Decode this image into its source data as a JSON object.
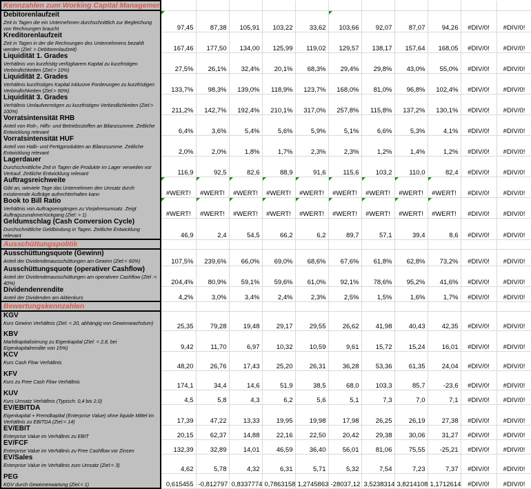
{
  "sections": [
    {
      "title": "Kennzahlen zum Working Capital Management",
      "rows": [
        {
          "title": "Debitorenlaufzeit",
          "desc": "Zeit in Tagen die ein Unternehmen durchschnittlich zur Begleichung von Rechnungen braucht",
          "values": [
            "97,45",
            "87,38",
            "105,91",
            "103,22",
            "33,62",
            "103,66",
            "92,07",
            "87,07",
            "94,26",
            "#DIV/0!",
            "#DIV/0!"
          ]
        },
        {
          "title": "Kreditorenlaufzeit",
          "desc": "Zeit in Tagen in der die Rechnungen des Unternehmens bezahlt werden (Ziel: > Debitorenlaufzeit)",
          "values": [
            "167,46",
            "177,50",
            "134,00",
            "125,99",
            "119,02",
            "129,57",
            "138,17",
            "157,64",
            "168,05",
            "#DIV/0!",
            "#DIV/0!"
          ]
        },
        {
          "title": "Liquidität 1. Grades",
          "desc": "Verhältnis von kurzfristig verfügbarem Kapital zu kurzfristigen Verbindlichkeiten (Ziel:> 10%)",
          "values": [
            "27,5%",
            "26,1%",
            "32,4%",
            "20,1%",
            "68,3%",
            "29,4%",
            "29,8%",
            "43,0%",
            "55,0%",
            "#DIV/0!",
            "#DIV/0!"
          ]
        },
        {
          "title": "Liquidität 2. Grades",
          "desc": "Verhältnis kurzfristiges Kapital inklusive Forderungen zu kurzfristigen Verbindlichkeiten (Ziel:> 90%)",
          "values": [
            "133,7%",
            "98,3%",
            "139,0%",
            "118,9%",
            "123,7%",
            "168,0%",
            "81,0%",
            "96,8%",
            "102,4%",
            "#DIV/0!",
            "#DIV/0!"
          ]
        },
        {
          "title": "Liquidität 3. Grades",
          "desc": "Verhältnis Umlaufvermögen zu kurzfristigen Verbindlichkeiten (Ziel:> 100%)",
          "values": [
            "211,2%",
            "142,7%",
            "192,4%",
            "210,1%",
            "317,0%",
            "257,8%",
            "115,8%",
            "137,2%",
            "130,1%",
            "#DIV/0!",
            "#DIV/0!"
          ]
        },
        {
          "title": "Vorratsintensität RHB",
          "desc": "Anteil von Roh-, Hilfs- und Betriebsstoffen an Bilanzsumme. Zeitliche Entwicklung relevant",
          "values": [
            "6,4%",
            "3,6%",
            "5,4%",
            "5,6%",
            "5,9%",
            "5,1%",
            "6,6%",
            "5,3%",
            "4,1%",
            "#DIV/0!",
            "#DIV/0!"
          ]
        },
        {
          "title": "Vorratsintensität HUF",
          "desc": "Anteil von Halb- und Fertigprodukten an Bilanzsumme. Zeitliche Entwicklung relevant",
          "values": [
            "2,0%",
            "2,0%",
            "1,8%",
            "1,7%",
            "2,3%",
            "2,3%",
            "1,2%",
            "1,4%",
            "1,2%",
            "#DIV/0!",
            "#DIV/0!"
          ]
        },
        {
          "title": "Lagerdauer",
          "desc": "Durchschnittliche Zeit in Tagen die Produkte im Lager verweilen vor Verkauf. Zeitliche Entwicklung relevant",
          "values": [
            "116,9",
            "92,5",
            "82,6",
            "88,9",
            "91,6",
            "115,6",
            "103,2",
            "110,0",
            "82,4",
            "#DIV/0!",
            "#DIV/0!"
          ]
        },
        {
          "title": "Auftragsreichweite",
          "desc": "Gibt an, wieviele Tage das Unternehmen den Umsatz durch existierende Aufträge aufrechterhalten kann",
          "values": [
            "#WERT!",
            "#WERT!",
            "#WERT!",
            "#WERT!",
            "#WERT!",
            "#WERT!",
            "#WERT!",
            "#WERT!",
            "#WERT!",
            "#DIV/0!",
            "#DIV/0!"
          ]
        },
        {
          "title": "Book to Bill Ratio",
          "desc": "Verhältnis von Auftragseingängen zu Vorjahresumsatz. Zeigt Auftragszunahme/rückgang (Ziel: > 1)",
          "values": [
            "#WERT!",
            "#WERT!",
            "#WERT!",
            "#WERT!",
            "#WERT!",
            "#WERT!",
            "#WERT!",
            "#WERT!",
            "#WERT!",
            "#DIV/0!",
            "#DIV/0!"
          ]
        },
        {
          "title": "Geldumschlag (Cash Conversion Cycle)",
          "desc": "Durchschnittliche Geldbindung in Tagen. Zeitliche Entwicklung relevant",
          "values": [
            "46,9",
            "2,4",
            "54,5",
            "66,2",
            "6,2",
            "89,7",
            "57,1",
            "39,4",
            "8,6",
            "#DIV/0!",
            "#DIV/0!"
          ]
        }
      ]
    },
    {
      "title": "Ausschüttungspolitik",
      "rows": [
        {
          "title": "Ausschüttungsquote (Gewinn)",
          "desc": "Anteil der Dividendenausschüttungen am Gewinn (Ziel:< 60%)",
          "values": [
            "107,5%",
            "239,6%",
            "66,0%",
            "69,0%",
            "68,6%",
            "67,6%",
            "61,8%",
            "62,8%",
            "73,2%",
            "#DIV/0!",
            "#DIV/0!"
          ]
        },
        {
          "title": "Ausschüttungsquote (operativer Cashflow)",
          "desc": "Anteil der Dividendenausschüttungen am operativen Cashflow (Ziel :< 40%)",
          "values": [
            "204,4%",
            "80,9%",
            "59,1%",
            "59,6%",
            "61,0%",
            "92,1%",
            "78,6%",
            "95,2%",
            "41,6%",
            "#DIV/0!",
            "#DIV/0!"
          ]
        },
        {
          "title": "Dividendenrendite",
          "desc": "Anteil der Dividenden am Aktienkurs",
          "values": [
            "4,2%",
            "3,0%",
            "3,4%",
            "2,4%",
            "2,3%",
            "2,5%",
            "1,5%",
            "1,6%",
            "1,7%",
            "#DIV/0!",
            "#DIV/0!"
          ]
        }
      ]
    },
    {
      "title": "Bewertungskennzahlen",
      "rows": [
        {
          "title": "KGV",
          "desc": "Kurs Gewinn Verhältnis (Ziel: < 20, abhängig von Gewinnwachstum)",
          "values": [
            "25,35",
            "79,28",
            "19,48",
            "29,17",
            "29,55",
            "26,62",
            "41,98",
            "40,43",
            "42,35",
            "#DIV/0!",
            "#DIV/0!"
          ]
        },
        {
          "title": "KBV",
          "desc": "Marktkapitalisierung zu Eigenkapital (Ziel: < 2,8, bei Eigenkapitalrendite von 15%)",
          "values": [
            "9,42",
            "11,70",
            "6,97",
            "10,32",
            "10,59",
            "9,61",
            "15,72",
            "15,24",
            "16,01",
            "#DIV/0!",
            "#DIV/0!"
          ]
        },
        {
          "title": "KCV",
          "desc": "Kurs Cash Flow Verhältnis",
          "values": [
            "48,20",
            "26,76",
            "17,43",
            "25,20",
            "26,31",
            "36,28",
            "53,36",
            "61,35",
            "24,04",
            "#DIV/0!",
            "#DIV/0!"
          ]
        },
        {
          "title": "KFV",
          "desc": "Kurs zu Free Cash Flow Verhältnis",
          "values": [
            "174,1",
            "34,4",
            "14,6",
            "51,9",
            "38,5",
            "68,0",
            "103,3",
            "85,7",
            "-23,6",
            "#DIV/0!",
            "#DIV/0!"
          ]
        },
        {
          "title": "KUV",
          "desc": "Kurs Umsatz Verhältnis (Typisch: 0,4 bis 2,0)",
          "values": [
            "4,5",
            "5,8",
            "4,3",
            "6,2",
            "5,6",
            "5,1",
            "7,3",
            "7,0",
            "7,1",
            "#DIV/0!",
            "#DIV/0!"
          ]
        },
        {
          "title": "EV/EBITDA",
          "desc": "Eigenkapital + Fremdkapital (Enterprise Value) ohne liquide Mittel im Verhältnis zu EBITDA (Ziel:< 14)",
          "values": [
            "17,39",
            "47,22",
            "13,33",
            "19,95",
            "19,98",
            "17,98",
            "26,25",
            "26,19",
            "27,38",
            "#DIV/0!",
            "#DIV/0!"
          ]
        },
        {
          "title": "EV/EBIT",
          "desc": "Enterprise Value im Verhältnis zu EBIT",
          "values": [
            "20,15",
            "62,37",
            "14,88",
            "22,16",
            "22,50",
            "20,42",
            "29,38",
            "30,06",
            "31,27",
            "#DIV/0!",
            "#DIV/0!"
          ]
        },
        {
          "title": "EV/FCF",
          "desc": "Enterprise Value im Verhältnis zu Free Cashflow vor Zinsen",
          "values": [
            "132,39",
            "32,89",
            "14,01",
            "46,59",
            "36,40",
            "56,01",
            "81,06",
            "75,55",
            "-25,21",
            "#DIV/0!",
            "#DIV/0!"
          ]
        },
        {
          "title": "EV/Sales",
          "desc": "Enterprise Value im Verhältnis zum Umsatz (Ziel:< 3)",
          "values": [
            "4,62",
            "5,78",
            "4,32",
            "6,31",
            "5,71",
            "5,32",
            "7,54",
            "7,23",
            "7,37",
            "#DIV/0!",
            "#DIV/0!"
          ]
        },
        {
          "title": "PEG",
          "desc": "KGV durch Gewinnerwartung (Ziel:< 1)",
          "values": [
            "0,615455",
            "-0,812797",
            "0,8337774",
            "0,7863158",
            "1,2745863",
            "-28037,12",
            "3,5238314",
            "3,8214108",
            "1,1712614",
            "#DIV/0!",
            "#DIV/0!"
          ]
        }
      ]
    }
  ],
  "colors": {
    "label_bg": "#c0c0c0",
    "section_text": "#e0574c",
    "comment_marker": "#1a8f1a"
  }
}
